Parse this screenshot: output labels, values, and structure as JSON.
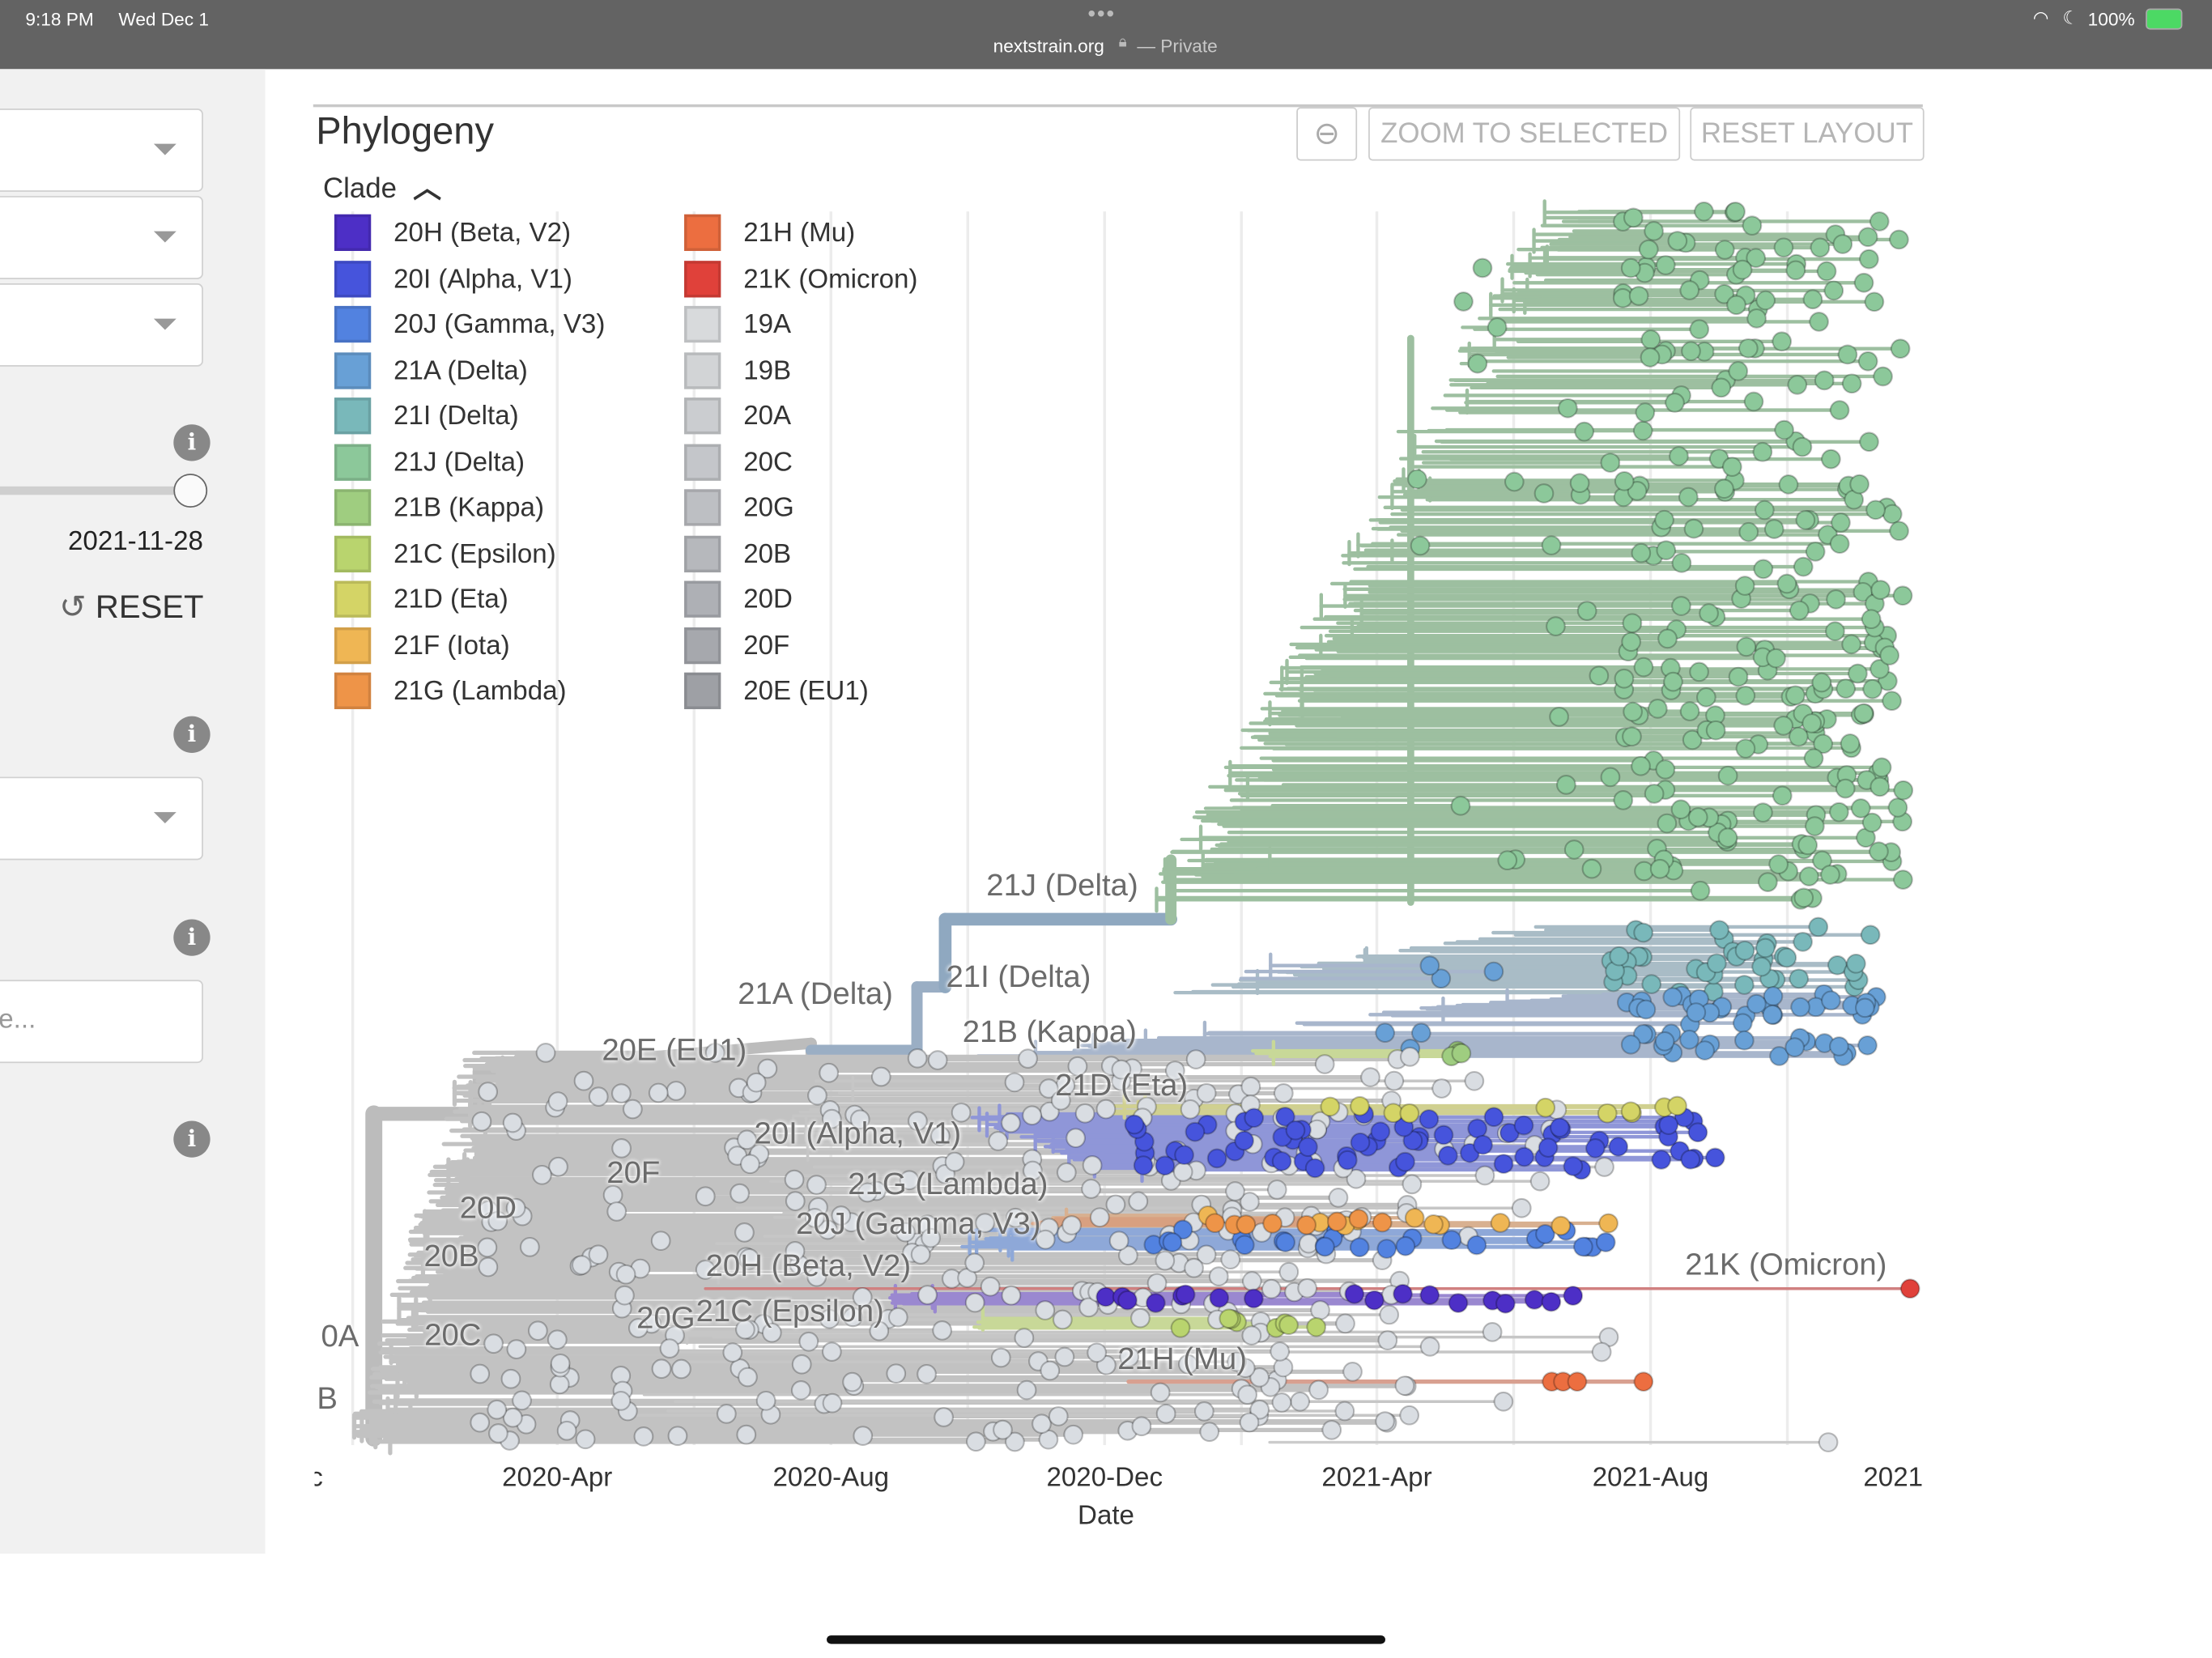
{
  "status_bar": {
    "time": "9:18 PM",
    "date": "Wed Dec 1",
    "url": "nextstrain.org",
    "private_label": "— Private",
    "battery": "100%",
    "more_icon": "ellipsis-icon"
  },
  "sidebar": {
    "date_value": "2021-11-28",
    "reset_label": "RESET",
    "search_placeholder": "e...",
    "slider_position_percent": 100
  },
  "panel": {
    "title": "Phylogeny",
    "legend_title": "Clade",
    "zoom_selected_label": "ZOOM TO SELECTED",
    "reset_layout_label": "RESET LAYOUT"
  },
  "legend": [
    {
      "label": "20H (Beta, V2)",
      "color": "#4d2fc6"
    },
    {
      "label": "20I (Alpha, V1)",
      "color": "#4654dc"
    },
    {
      "label": "20J (Gamma, V3)",
      "color": "#5282e0"
    },
    {
      "label": "21A (Delta)",
      "color": "#68a0d6"
    },
    {
      "label": "21I (Delta)",
      "color": "#79b8ba"
    },
    {
      "label": "21J (Delta)",
      "color": "#8cc89a"
    },
    {
      "label": "21B (Kappa)",
      "color": "#9fcd80"
    },
    {
      "label": "21C (Epsilon)",
      "color": "#b9d46e"
    },
    {
      "label": "21D (Eta)",
      "color": "#d4d466"
    },
    {
      "label": "21F (Iota)",
      "color": "#efb654"
    },
    {
      "label": "21G (Lambda)",
      "color": "#ee9448"
    },
    {
      "label": "21H (Mu)",
      "color": "#ec6e40"
    },
    {
      "label": "21K (Omicron)",
      "color": "#e0413a"
    },
    {
      "label": "19A",
      "color": "#d8dadc"
    },
    {
      "label": "19B",
      "color": "#d2d4d6"
    },
    {
      "label": "20A",
      "color": "#cbcdd0"
    },
    {
      "label": "20C",
      "color": "#c4c6ca"
    },
    {
      "label": "20G",
      "color": "#bdbfc3"
    },
    {
      "label": "20B",
      "color": "#b6b8bc"
    },
    {
      "label": "20D",
      "color": "#aeb0b5"
    },
    {
      "label": "20F",
      "color": "#a6a8ad"
    },
    {
      "label": "20E (EU1)",
      "color": "#9ea0a5"
    }
  ],
  "tree": {
    "x_axis_label": "Date",
    "x_ticks": [
      "Dec",
      "2020-Apr",
      "2020-Aug",
      "2020-Dec",
      "2021-Apr",
      "2021-Aug",
      "2021"
    ],
    "clade_labels": [
      "21J (Delta)",
      "21A (Delta)",
      "21I (Delta)",
      "21B (Kappa)",
      "20E (EU1)",
      "21D (Eta)",
      "20I (Alpha, V1)",
      "20F",
      "20D",
      "21G (Lambda)",
      "20J (Gamma, V3)",
      "20B",
      "21K (Omicron)",
      "20H (Beta, V2)",
      "21C (Epsilon)",
      "20G",
      "20C",
      "0A",
      "21H (Mu)",
      "B"
    ]
  }
}
